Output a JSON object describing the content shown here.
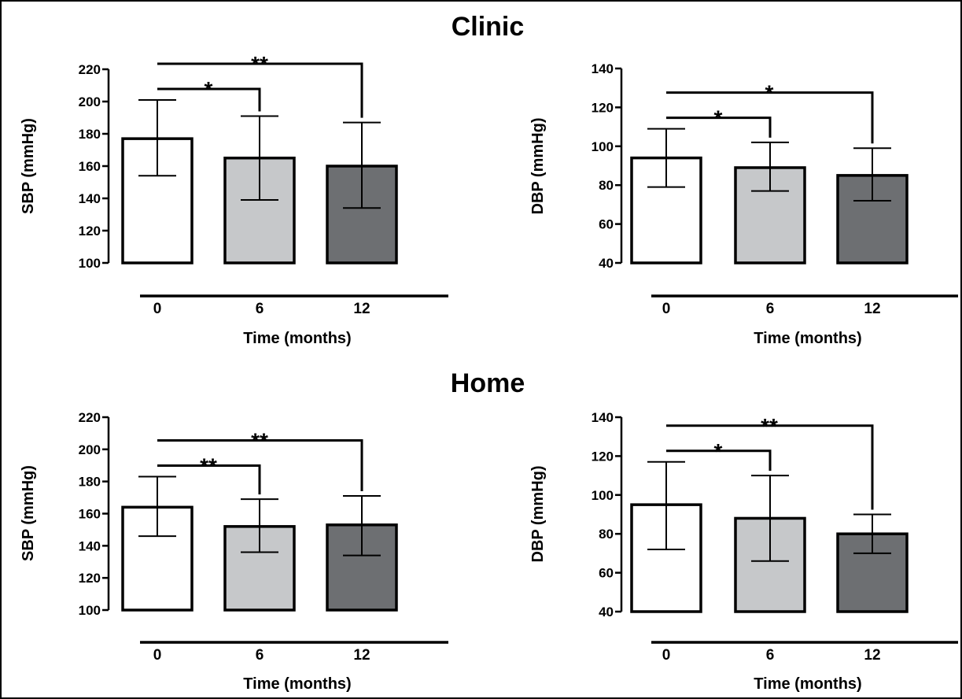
{
  "sections": [
    {
      "title": "Clinic"
    },
    {
      "title": "Home"
    }
  ],
  "colors": {
    "month_0": "#ffffff",
    "month_6": "#c6c8ca",
    "month_12": "#6d6f72",
    "stroke": "#000000"
  },
  "chart_data": [
    {
      "section": "Clinic",
      "type": "bar",
      "categories": [
        "0",
        "6",
        "12"
      ],
      "xlabel": "Time (months)",
      "ylabel": "SBP (mmHg)",
      "ylim": [
        100,
        220
      ],
      "yticks": [
        100,
        120,
        140,
        160,
        180,
        200,
        220
      ],
      "values": [
        177,
        165,
        160
      ],
      "error_low": [
        154,
        139,
        134
      ],
      "error_high": [
        201,
        191,
        187
      ],
      "significance": [
        {
          "from": "0",
          "to": "6",
          "label": "*"
        },
        {
          "from": "0",
          "to": "12",
          "label": "**"
        }
      ]
    },
    {
      "section": "Clinic",
      "type": "bar",
      "categories": [
        "0",
        "6",
        "12"
      ],
      "xlabel": "Time (months)",
      "ylabel": "DBP (mmHg)",
      "ylim": [
        40,
        140
      ],
      "yticks": [
        40,
        60,
        80,
        100,
        120,
        140
      ],
      "values": [
        94,
        89,
        85
      ],
      "error_low": [
        79,
        77,
        72
      ],
      "error_high": [
        109,
        102,
        99
      ],
      "significance": [
        {
          "from": "0",
          "to": "6",
          "label": "*"
        },
        {
          "from": "0",
          "to": "12",
          "label": "*"
        }
      ]
    },
    {
      "section": "Home",
      "type": "bar",
      "categories": [
        "0",
        "6",
        "12"
      ],
      "xlabel": "Time (months)",
      "ylabel": "SBP (mmHg)",
      "ylim": [
        100,
        220
      ],
      "yticks": [
        100,
        120,
        140,
        160,
        180,
        200,
        220
      ],
      "values": [
        164,
        152,
        153
      ],
      "error_low": [
        146,
        136,
        134
      ],
      "error_high": [
        183,
        169,
        171
      ],
      "significance": [
        {
          "from": "0",
          "to": "6",
          "label": "**"
        },
        {
          "from": "0",
          "to": "12",
          "label": "**"
        }
      ]
    },
    {
      "section": "Home",
      "type": "bar",
      "categories": [
        "0",
        "6",
        "12"
      ],
      "xlabel": "Time (months)",
      "ylabel": "DBP (mmHg)",
      "ylim": [
        40,
        140
      ],
      "yticks": [
        40,
        60,
        80,
        100,
        120,
        140
      ],
      "values": [
        95,
        88,
        80
      ],
      "error_low": [
        72,
        66,
        70
      ],
      "error_high": [
        117,
        110,
        90
      ],
      "significance": [
        {
          "from": "0",
          "to": "6",
          "label": "*"
        },
        {
          "from": "0",
          "to": "12",
          "label": "**"
        }
      ]
    }
  ]
}
